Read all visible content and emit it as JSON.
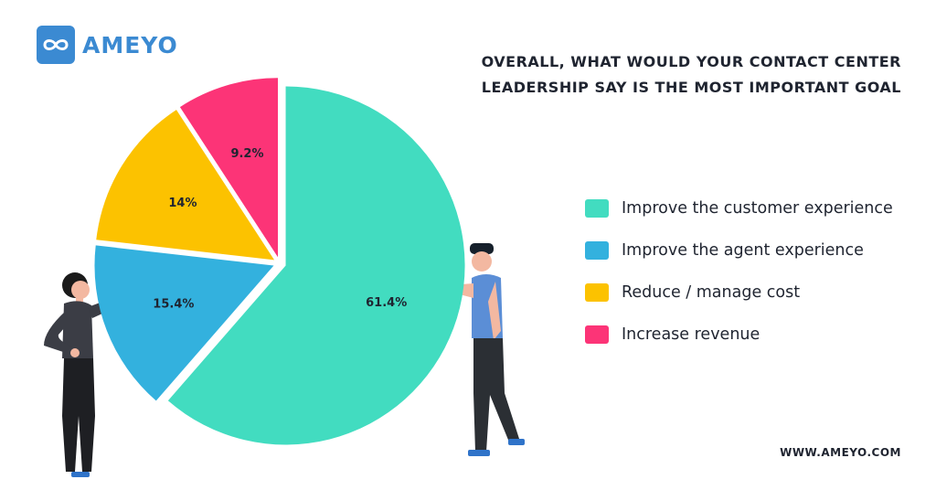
{
  "brand": {
    "name": "AMEYO",
    "url": "WWW.AMEYO.COM",
    "color": "#3b8ad2"
  },
  "chart_data": {
    "type": "pie",
    "title_lines": [
      "OVERALL, WHAT WOULD YOUR CONTACT CENTER",
      "LEADERSHIP SAY IS THE MOST IMPORTANT GOAL"
    ],
    "categories": [
      "Improve the customer experience",
      "Improve the agent experience",
      "Reduce / manage cost",
      "Increase revenue"
    ],
    "values": [
      61.4,
      15.4,
      14,
      9.2
    ],
    "labels": [
      "61.4%",
      "15.4%",
      "14%",
      "9.2%"
    ],
    "colors": [
      "#42dcc0",
      "#33b1de",
      "#fcc200",
      "#fc3477"
    ],
    "legend_position": "right"
  }
}
